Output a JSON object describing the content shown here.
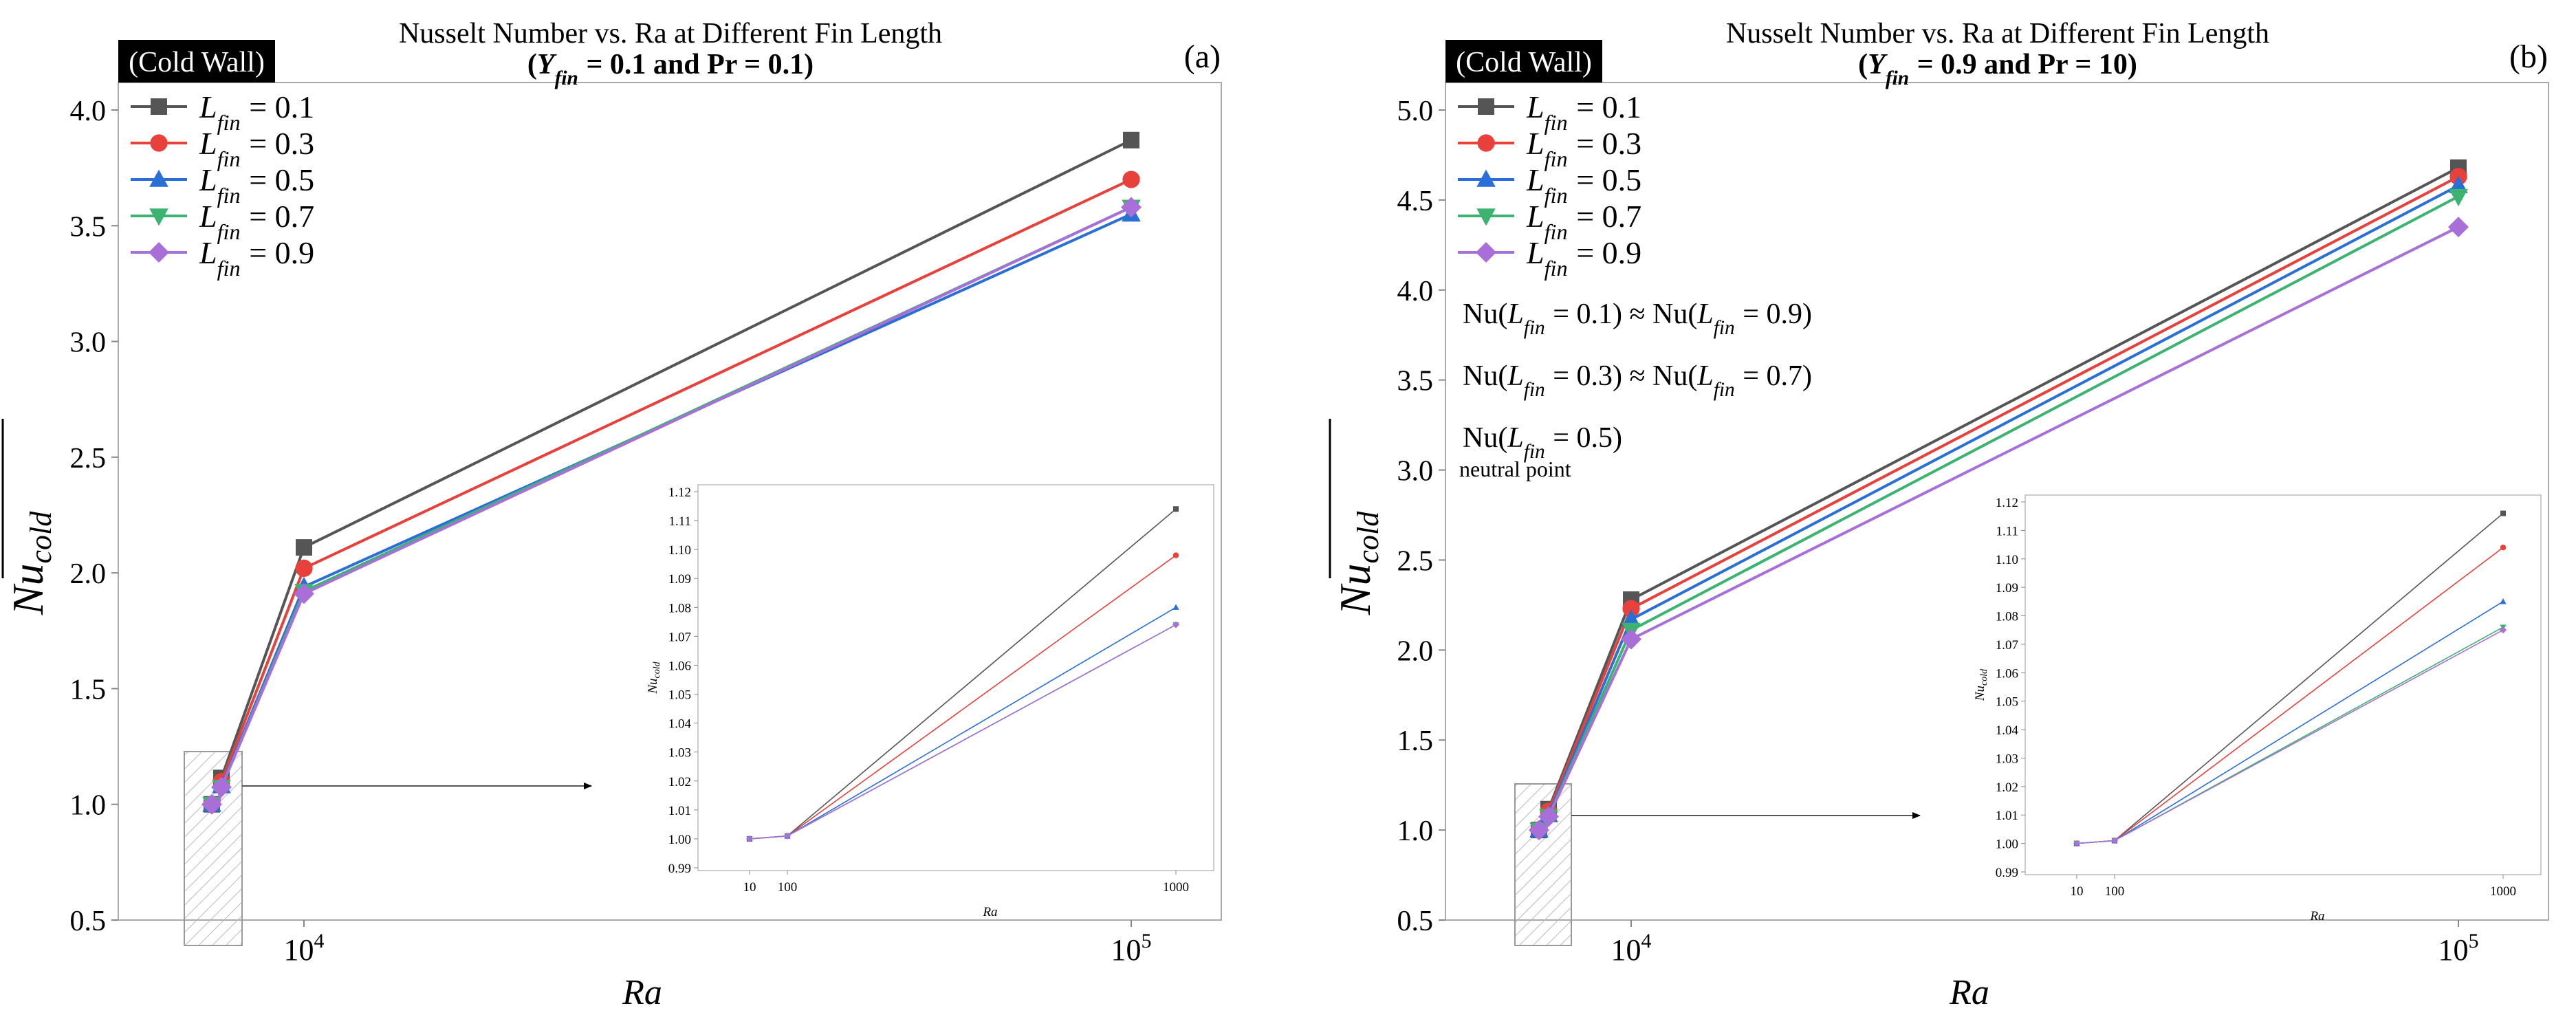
{
  "colors": {
    "series": [
      "#555555",
      "#e8413c",
      "#2a6fd6",
      "#3cb371",
      "#a86fd9"
    ],
    "frame": "#aaaaaa",
    "badge_bg": "#000000",
    "badge_text": "#ffffff"
  },
  "panels": [
    {
      "title_line1": "Nusselt Number vs. Ra at Different Fin Length",
      "title_line2": "(Y_fin = 0.1 and Pr = 0.1)",
      "panel_label": "(a)",
      "badge": "(Cold Wall)",
      "xlabel": "Ra",
      "ylabel": "Nu_cold",
      "annotations": []
    },
    {
      "title_line1": "Nusselt Number vs. Ra at Different Fin Length",
      "title_line2": "(Y_fin = 0.9 and Pr = 10)",
      "panel_label": "(b)",
      "badge": "(Cold Wall)",
      "xlabel": "Ra",
      "ylabel": "Nu_cold",
      "annotations": [
        "Nu(L_fin = 0.1) ≈ Nu(L_fin = 0.9)",
        "Nu(L_fin = 0.3) ≈ Nu(L_fin = 0.7)",
        "Nu(L_fin = 0.5)",
        "neutral point"
      ]
    }
  ],
  "chart_data": [
    {
      "type": "line",
      "title": "Nusselt Number vs. Ra at Different Fin Length (Y_fin = 0.1 and Pr = 0.1)",
      "xlabel": "Ra",
      "ylabel": "Nu_cold",
      "xscale": "log",
      "x": [
        10,
        100,
        1000,
        10000,
        100000
      ],
      "xticks": [
        "10^4",
        "10^5"
      ],
      "ylim": [
        0.5,
        4.0
      ],
      "yticks": [
        "0.5",
        "1.0",
        "1.5",
        "2.0",
        "2.5",
        "3.0",
        "3.5",
        "4.0"
      ],
      "legend_position": "top-left",
      "series": [
        {
          "name": "L_fin = 0.1",
          "marker": "square",
          "values": [
            1.0,
            1.001,
            1.114,
            2.11,
            3.87
          ]
        },
        {
          "name": "L_fin = 0.3",
          "marker": "circle",
          "values": [
            1.0,
            1.001,
            1.098,
            2.02,
            3.7
          ]
        },
        {
          "name": "L_fin = 0.5",
          "marker": "triangle-up",
          "values": [
            1.0,
            1.001,
            1.08,
            1.94,
            3.55
          ]
        },
        {
          "name": "L_fin = 0.7",
          "marker": "triangle-down",
          "values": [
            1.0,
            1.001,
            1.074,
            1.92,
            3.58
          ]
        },
        {
          "name": "L_fin = 0.9",
          "marker": "diamond",
          "values": [
            1.0,
            1.001,
            1.074,
            1.91,
            3.58
          ]
        }
      ],
      "inset": {
        "xlabel": "Ra",
        "ylabel": "Nu_cold",
        "ylim": [
          0.99,
          1.12
        ],
        "yticks": [
          "0.99",
          "1.00",
          "1.01",
          "1.02",
          "1.03",
          "1.04",
          "1.05",
          "1.06",
          "1.07",
          "1.08",
          "1.09",
          "1.10",
          "1.11",
          "1.12"
        ],
        "xticks": [
          "10",
          "100",
          "1000"
        ]
      }
    },
    {
      "type": "line",
      "title": "Nusselt Number vs. Ra at Different Fin Length (Y_fin = 0.9 and Pr = 10)",
      "xlabel": "Ra",
      "ylabel": "Nu_cold",
      "xscale": "log",
      "x": [
        10,
        100,
        1000,
        10000,
        100000
      ],
      "xticks": [
        "10^4",
        "10^5"
      ],
      "ylim": [
        0.5,
        5.0
      ],
      "yticks": [
        "0.5",
        "1.0",
        "1.5",
        "2.0",
        "2.5",
        "3.0",
        "3.5",
        "4.0",
        "4.5",
        "5.0"
      ],
      "legend_position": "top-left",
      "series": [
        {
          "name": "L_fin = 0.1",
          "marker": "square",
          "values": [
            1.0,
            1.001,
            1.116,
            2.28,
            4.68
          ]
        },
        {
          "name": "L_fin = 0.3",
          "marker": "circle",
          "values": [
            1.0,
            1.001,
            1.104,
            2.23,
            4.63
          ]
        },
        {
          "name": "L_fin = 0.5",
          "marker": "triangle-up",
          "values": [
            1.0,
            1.001,
            1.085,
            2.17,
            4.58
          ]
        },
        {
          "name": "L_fin = 0.7",
          "marker": "triangle-down",
          "values": [
            1.0,
            1.001,
            1.076,
            2.11,
            4.52
          ]
        },
        {
          "name": "L_fin = 0.9",
          "marker": "diamond",
          "values": [
            1.0,
            1.001,
            1.075,
            2.06,
            4.35
          ]
        }
      ],
      "inset": {
        "xlabel": "Ra",
        "ylabel": "Nu_cold",
        "ylim": [
          0.99,
          1.12
        ],
        "yticks": [
          "0.99",
          "1.00",
          "1.01",
          "1.02",
          "1.03",
          "1.04",
          "1.05",
          "1.06",
          "1.07",
          "1.08",
          "1.09",
          "1.10",
          "1.11",
          "1.12"
        ],
        "xticks": [
          "10",
          "100",
          "1000"
        ]
      }
    }
  ]
}
